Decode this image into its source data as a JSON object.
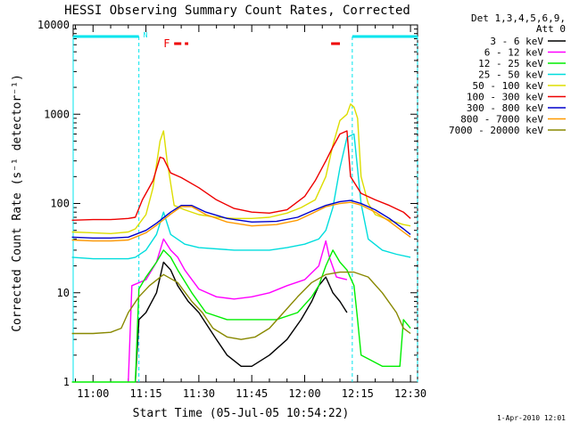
{
  "chart_data": {
    "type": "line",
    "title": "HESSI Observing Summary Count Rates, Corrected",
    "xlabel": "Start Time (05-Jul-05 10:54:22)",
    "ylabel": "Corrected Count Rate (s⁻¹ detector⁻¹)",
    "yscale": "log",
    "ylim": [
      1,
      10000
    ],
    "xlim": [
      "10:54:22",
      "12:32:00"
    ],
    "x_ticks": [
      "11:00",
      "11:15",
      "11:30",
      "11:45",
      "12:00",
      "12:15",
      "12:30"
    ],
    "y_ticks": [
      "1",
      "10",
      "100",
      "1000",
      "10000"
    ],
    "legend_header": [
      "Det 1,3,4,5,6,9,",
      "Att 0"
    ],
    "legend_position": "right",
    "footer": "1-Apr-2010 12:01",
    "flags": {
      "night_label": "N",
      "flare_label": "F",
      "night_intervals": [
        [
          "10:54:22",
          "11:13:00"
        ],
        [
          "12:13:30",
          "12:32:00"
        ]
      ],
      "flare_intervals": [
        [
          "11:23:00",
          "11:27:00"
        ],
        [
          "12:07:30",
          "12:10:00"
        ]
      ],
      "night_color": "#00e5ee",
      "flare_color": "#ee0000"
    },
    "series": [
      {
        "name": "3 - 6 keV",
        "color": "#000000",
        "points": [
          [
            "11:12",
            0
          ],
          [
            "11:13",
            5
          ],
          [
            "11:15",
            6
          ],
          [
            "11:18",
            10
          ],
          [
            "11:20",
            22
          ],
          [
            "11:22",
            18
          ],
          [
            "11:24",
            12
          ],
          [
            "11:27",
            8
          ],
          [
            "11:30",
            6
          ],
          [
            "11:35",
            3
          ],
          [
            "11:38",
            2
          ],
          [
            "11:42",
            1.5
          ],
          [
            "11:45",
            1.5
          ],
          [
            "11:50",
            2
          ],
          [
            "11:55",
            3
          ],
          [
            "11:59",
            5
          ],
          [
            "12:02",
            8
          ],
          [
            "12:04",
            12
          ],
          [
            "12:06",
            15
          ],
          [
            "12:08",
            10
          ],
          [
            "12:10",
            8
          ],
          [
            "12:12",
            6
          ]
        ]
      },
      {
        "name": "6 - 12 keV",
        "color": "#ff00ff",
        "points": [
          [
            "11:10",
            0
          ],
          [
            "11:11",
            12
          ],
          [
            "11:15",
            14
          ],
          [
            "11:18",
            22
          ],
          [
            "11:20",
            40
          ],
          [
            "11:22",
            30
          ],
          [
            "11:24",
            25
          ],
          [
            "11:26",
            18
          ],
          [
            "11:30",
            11
          ],
          [
            "11:35",
            9
          ],
          [
            "11:40",
            8.5
          ],
          [
            "11:45",
            9
          ],
          [
            "11:50",
            10
          ],
          [
            "11:55",
            12
          ],
          [
            "12:00",
            14
          ],
          [
            "12:04",
            20
          ],
          [
            "12:06",
            38
          ],
          [
            "12:07",
            25
          ],
          [
            "12:09",
            15
          ],
          [
            "12:12",
            14
          ]
        ]
      },
      {
        "name": "12 - 25 keV",
        "color": "#00ee00",
        "points": [
          [
            "10:54",
            0
          ],
          [
            "11:12",
            0
          ],
          [
            "11:13",
            11
          ],
          [
            "11:15",
            15
          ],
          [
            "11:18",
            22
          ],
          [
            "11:20",
            30
          ],
          [
            "11:22",
            25
          ],
          [
            "11:24",
            18
          ],
          [
            "11:28",
            10
          ],
          [
            "11:32",
            6
          ],
          [
            "11:38",
            5
          ],
          [
            "11:45",
            5
          ],
          [
            "11:52",
            5
          ],
          [
            "11:58",
            6
          ],
          [
            "12:02",
            9
          ],
          [
            "12:04",
            12
          ],
          [
            "12:06",
            20
          ],
          [
            "12:08",
            30
          ],
          [
            "12:10",
            22
          ],
          [
            "12:12",
            18
          ],
          [
            "12:14",
            12
          ],
          [
            "12:15",
            5
          ],
          [
            "12:16",
            2
          ],
          [
            "12:22",
            1.5
          ],
          [
            "12:27",
            1.5
          ],
          [
            "12:28",
            5
          ],
          [
            "12:30",
            4
          ]
        ]
      },
      {
        "name": "25 - 50 keV",
        "color": "#00dddd",
        "points": [
          [
            "10:54",
            25
          ],
          [
            "11:00",
            24
          ],
          [
            "11:05",
            24
          ],
          [
            "11:10",
            24
          ],
          [
            "11:12",
            25
          ],
          [
            "11:15",
            30
          ],
          [
            "11:18",
            45
          ],
          [
            "11:20",
            80
          ],
          [
            "11:22",
            45
          ],
          [
            "11:26",
            35
          ],
          [
            "11:30",
            32
          ],
          [
            "11:40",
            30
          ],
          [
            "11:50",
            30
          ],
          [
            "11:55",
            32
          ],
          [
            "12:00",
            35
          ],
          [
            "12:04",
            40
          ],
          [
            "12:06",
            50
          ],
          [
            "12:08",
            90
          ],
          [
            "12:10",
            250
          ],
          [
            "12:12",
            550
          ],
          [
            "12:14",
            600
          ],
          [
            "12:16",
            100
          ],
          [
            "12:18",
            40
          ],
          [
            "12:22",
            30
          ],
          [
            "12:26",
            27
          ],
          [
            "12:30",
            25
          ]
        ]
      },
      {
        "name": "50 - 100 keV",
        "color": "#dddd00",
        "points": [
          [
            "10:54",
            48
          ],
          [
            "11:00",
            47
          ],
          [
            "11:05",
            46
          ],
          [
            "11:10",
            48
          ],
          [
            "11:12",
            52
          ],
          [
            "11:15",
            75
          ],
          [
            "11:17",
            150
          ],
          [
            "11:19",
            500
          ],
          [
            "11:20",
            650
          ],
          [
            "11:21",
            300
          ],
          [
            "11:23",
            95
          ],
          [
            "11:26",
            85
          ],
          [
            "11:30",
            75
          ],
          [
            "11:35",
            70
          ],
          [
            "11:40",
            68
          ],
          [
            "11:45",
            68
          ],
          [
            "11:50",
            70
          ],
          [
            "11:55",
            78
          ],
          [
            "11:59",
            90
          ],
          [
            "12:03",
            110
          ],
          [
            "12:06",
            200
          ],
          [
            "12:08",
            450
          ],
          [
            "12:10",
            850
          ],
          [
            "12:12",
            1000
          ],
          [
            "12:13",
            1300
          ],
          [
            "12:14",
            1200
          ],
          [
            "12:15",
            900
          ],
          [
            "12:16",
            200
          ],
          [
            "12:18",
            100
          ],
          [
            "12:20",
            75
          ],
          [
            "12:24",
            65
          ],
          [
            "12:28",
            58
          ],
          [
            "12:30",
            56
          ]
        ]
      },
      {
        "name": "100 - 300 keV",
        "color": "#ee0000",
        "points": [
          [
            "10:54",
            65
          ],
          [
            "11:00",
            66
          ],
          [
            "11:05",
            66
          ],
          [
            "11:10",
            68
          ],
          [
            "11:12",
            70
          ],
          [
            "11:14",
            110
          ],
          [
            "11:17",
            180
          ],
          [
            "11:19",
            330
          ],
          [
            "11:20",
            320
          ],
          [
            "11:22",
            220
          ],
          [
            "11:25",
            195
          ],
          [
            "11:30",
            150
          ],
          [
            "11:35",
            110
          ],
          [
            "11:40",
            88
          ],
          [
            "11:45",
            80
          ],
          [
            "11:50",
            78
          ],
          [
            "11:55",
            85
          ],
          [
            "12:00",
            120
          ],
          [
            "12:03",
            180
          ],
          [
            "12:06",
            300
          ],
          [
            "12:08",
            430
          ],
          [
            "12:10",
            600
          ],
          [
            "12:12",
            650
          ],
          [
            "12:13",
            200
          ],
          [
            "12:16",
            130
          ],
          [
            "12:20",
            110
          ],
          [
            "12:24",
            95
          ],
          [
            "12:28",
            80
          ],
          [
            "12:30",
            68
          ]
        ]
      },
      {
        "name": "300 - 800 keV",
        "color": "#0000cc",
        "points": [
          [
            "10:54",
            42
          ],
          [
            "11:00",
            41
          ],
          [
            "11:05",
            41
          ],
          [
            "11:10",
            42
          ],
          [
            "11:12",
            45
          ],
          [
            "11:15",
            50
          ],
          [
            "11:18",
            60
          ],
          [
            "11:22",
            80
          ],
          [
            "11:25",
            95
          ],
          [
            "11:28",
            95
          ],
          [
            "11:32",
            80
          ],
          [
            "11:38",
            68
          ],
          [
            "11:45",
            62
          ],
          [
            "11:52",
            63
          ],
          [
            "11:58",
            70
          ],
          [
            "12:02",
            82
          ],
          [
            "12:06",
            95
          ],
          [
            "12:10",
            105
          ],
          [
            "12:13",
            108
          ],
          [
            "12:16",
            100
          ],
          [
            "12:20",
            85
          ],
          [
            "12:24",
            68
          ],
          [
            "12:28",
            52
          ],
          [
            "12:30",
            45
          ]
        ]
      },
      {
        "name": "800 - 7000 keV",
        "color": "#ff9900",
        "points": [
          [
            "10:54",
            39
          ],
          [
            "11:00",
            38
          ],
          [
            "11:05",
            38
          ],
          [
            "11:10",
            39
          ],
          [
            "11:12",
            42
          ],
          [
            "11:15",
            47
          ],
          [
            "11:18",
            57
          ],
          [
            "11:22",
            76
          ],
          [
            "11:25",
            92
          ],
          [
            "11:28",
            92
          ],
          [
            "11:32",
            75
          ],
          [
            "11:38",
            62
          ],
          [
            "11:45",
            56
          ],
          [
            "11:52",
            58
          ],
          [
            "11:58",
            65
          ],
          [
            "12:02",
            77
          ],
          [
            "12:06",
            92
          ],
          [
            "12:10",
            100
          ],
          [
            "12:13",
            103
          ],
          [
            "12:16",
            96
          ],
          [
            "12:20",
            80
          ],
          [
            "12:24",
            63
          ],
          [
            "12:28",
            48
          ],
          [
            "12:30",
            42
          ]
        ]
      },
      {
        "name": "7000 - 20000 keV",
        "color": "#888800",
        "points": [
          [
            "10:54",
            3.5
          ],
          [
            "11:00",
            3.5
          ],
          [
            "11:05",
            3.6
          ],
          [
            "11:08",
            4
          ],
          [
            "11:10",
            6
          ],
          [
            "11:13",
            9
          ],
          [
            "11:16",
            12
          ],
          [
            "11:20",
            16
          ],
          [
            "11:24",
            13
          ],
          [
            "11:28",
            8
          ],
          [
            "11:31",
            6
          ],
          [
            "11:34",
            4
          ],
          [
            "11:38",
            3.2
          ],
          [
            "11:42",
            3
          ],
          [
            "11:46",
            3.2
          ],
          [
            "11:50",
            4
          ],
          [
            "11:54",
            6
          ],
          [
            "11:58",
            9
          ],
          [
            "12:02",
            13
          ],
          [
            "12:06",
            16
          ],
          [
            "12:10",
            17
          ],
          [
            "12:14",
            17
          ],
          [
            "12:18",
            15
          ],
          [
            "12:22",
            10
          ],
          [
            "12:26",
            6
          ],
          [
            "12:28",
            4
          ],
          [
            "12:30",
            3.5
          ]
        ]
      }
    ]
  }
}
